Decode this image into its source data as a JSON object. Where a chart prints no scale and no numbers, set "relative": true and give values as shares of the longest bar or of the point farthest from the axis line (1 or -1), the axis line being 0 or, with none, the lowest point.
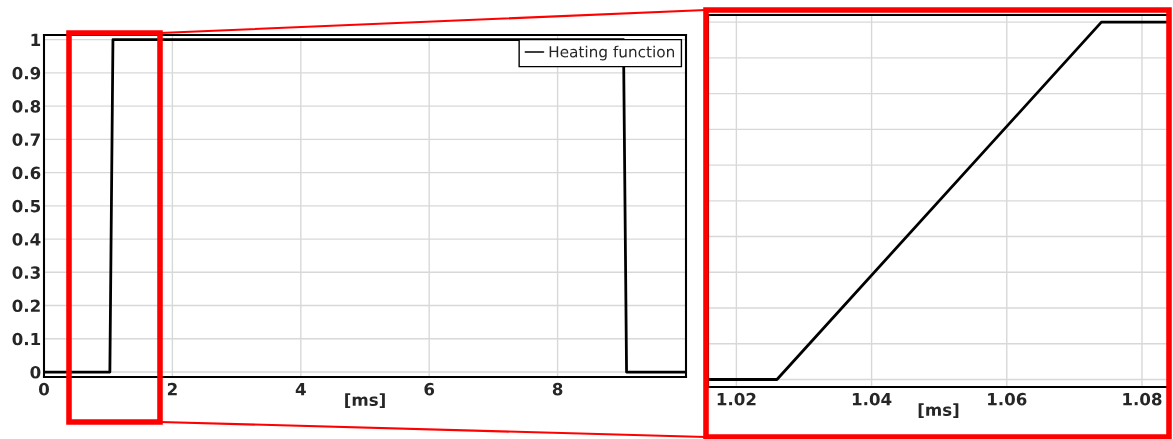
{
  "chart_data": [
    {
      "type": "line",
      "xlabel": "[ms]",
      "xlim": [
        0,
        10
      ],
      "ylim": [
        -0.015,
        1.014
      ],
      "xticks": [
        0,
        2,
        4,
        6,
        8
      ],
      "yticks": [
        0,
        0.1,
        0.2,
        0.3,
        0.4,
        0.5,
        0.6,
        0.7,
        0.8,
        0.9,
        1
      ],
      "grid": true,
      "legend": "top right",
      "series": [
        {
          "name": "Heating function",
          "color": "#000000",
          "x": [
            0,
            1.026,
            1.074,
            9.026,
            9.074,
            10
          ],
          "values": [
            0,
            0,
            1,
            1,
            0,
            0
          ]
        }
      ]
    },
    {
      "type": "line",
      "relative": true,
      "xlabel": "[ms]",
      "xlim": [
        1.0158,
        1.084
      ],
      "xticks": [
        1.02,
        1.04,
        1.06,
        1.08
      ],
      "grid": true,
      "series": [
        {
          "color": "#000000",
          "x": [
            1.0158,
            1.026,
            1.074,
            1.084
          ],
          "values": [
            0,
            0,
            1,
            1
          ]
        }
      ]
    }
  ]
}
